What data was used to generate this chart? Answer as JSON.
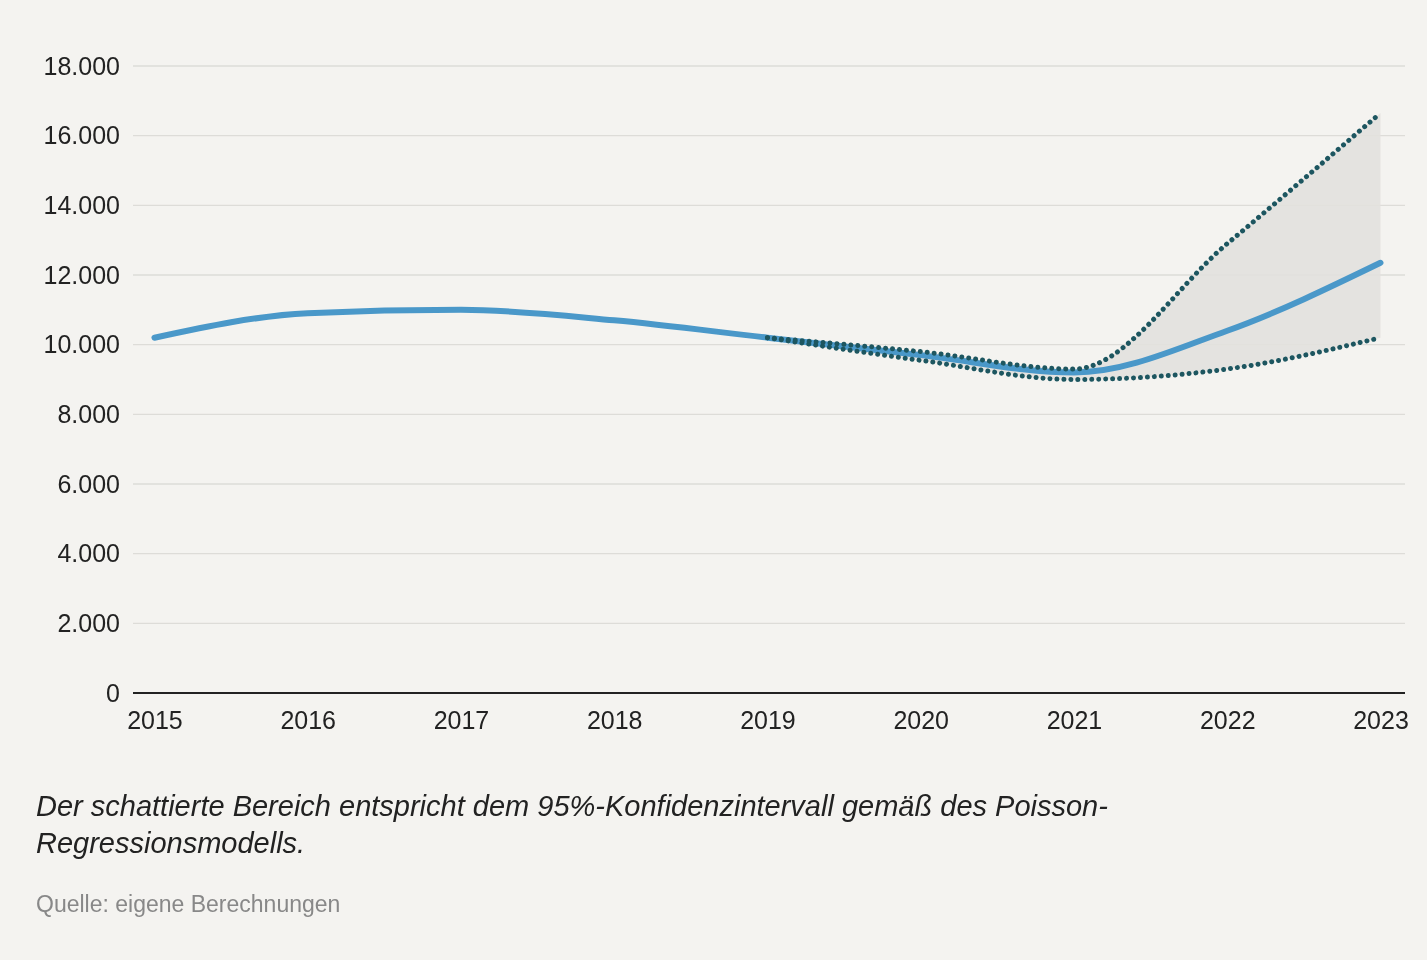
{
  "chart_data": {
    "type": "line",
    "x": [
      2015,
      2016,
      2017,
      2018,
      2019,
      2020,
      2021,
      2022,
      2023
    ],
    "series": [
      {
        "name": null,
        "color": "#4a98c9",
        "values": [
          10200,
          10900,
          11000,
          10700,
          10200,
          9700,
          9200,
          10400,
          12350
        ],
        "lower": [
          null,
          null,
          null,
          null,
          10200,
          9550,
          9000,
          9300,
          10200
        ],
        "upper": [
          null,
          null,
          null,
          null,
          10200,
          9800,
          9300,
          12900,
          16650
        ]
      },
      {
        "color": "#1d5660",
        "line_style": "dotted",
        "values": [
          null,
          null,
          null,
          null,
          10200,
          9550,
          9000,
          9300,
          10200
        ]
      },
      {
        "color": "#1d5660",
        "line_style": "dotted",
        "values": [
          null,
          null,
          null,
          null,
          10200,
          9800,
          9300,
          12900,
          16650
        ]
      }
    ],
    "xlim": [
      2014.86,
      2023.16
    ],
    "xticks": [
      2015,
      2016,
      2017,
      2018,
      2019,
      2020,
      2021,
      2022,
      2023
    ],
    "ylim": [
      0,
      18000
    ],
    "yticks": [
      {
        "value": 0,
        "label": "0"
      },
      {
        "value": 2000,
        "label": "2.000"
      },
      {
        "value": 4000,
        "label": "4.000"
      },
      {
        "value": 6000,
        "label": "6.000"
      },
      {
        "value": 8000,
        "label": "8.000"
      },
      {
        "value": 10000,
        "label": "10.000"
      },
      {
        "value": 12000,
        "label": "12.000"
      },
      {
        "value": 14000,
        "label": "14.000"
      },
      {
        "value": 16000,
        "label": "16.000"
      },
      {
        "value": 18000,
        "label": "18.000"
      }
    ],
    "grid": "y",
    "annotations": [
      "Der schattierte Bereich entspricht dem 95%-Konfidenzintervall gemäß des Poisson-Regressionsmodells.",
      "Quelle: eigene Berechnungen"
    ]
  }
}
